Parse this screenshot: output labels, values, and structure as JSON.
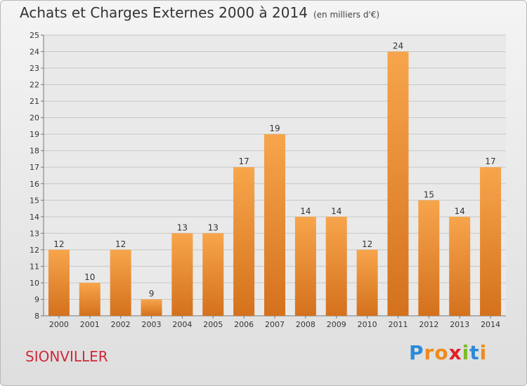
{
  "title": "Achats et Charges Externes 2000 à 2014",
  "unit_note": "(en milliers d'€)",
  "commune": "SIONVILLER",
  "logo": {
    "letters": [
      "P",
      "r",
      "o",
      "x",
      "i",
      "t",
      "i"
    ],
    "colors": [
      "#2b8ad8",
      "#f08a1c",
      "#f08a1c",
      "#e0202a",
      "#7dbb2a",
      "#2b8ad8",
      "#f08a1c"
    ]
  },
  "colors": {
    "bar_light": "#f7a54c",
    "bar_dark": "#d4711d",
    "commune": "#d2283a"
  },
  "chart_data": {
    "type": "bar",
    "title": "Achats et Charges Externes 2000 à 2014",
    "subtitle": "(en milliers d'€)",
    "xlabel": "",
    "ylabel": "",
    "categories": [
      "2000",
      "2001",
      "2002",
      "2003",
      "2004",
      "2005",
      "2006",
      "2007",
      "2008",
      "2009",
      "2010",
      "2011",
      "2012",
      "2013",
      "2014"
    ],
    "values": [
      12,
      10,
      12,
      9,
      13,
      13,
      17,
      19,
      14,
      14,
      12,
      24,
      15,
      14,
      17
    ],
    "ylim": [
      8,
      25
    ],
    "yticks": [
      8,
      9,
      10,
      11,
      12,
      13,
      14,
      15,
      16,
      17,
      18,
      19,
      20,
      21,
      22,
      23,
      24,
      25
    ],
    "grid": true,
    "legend": "none"
  }
}
